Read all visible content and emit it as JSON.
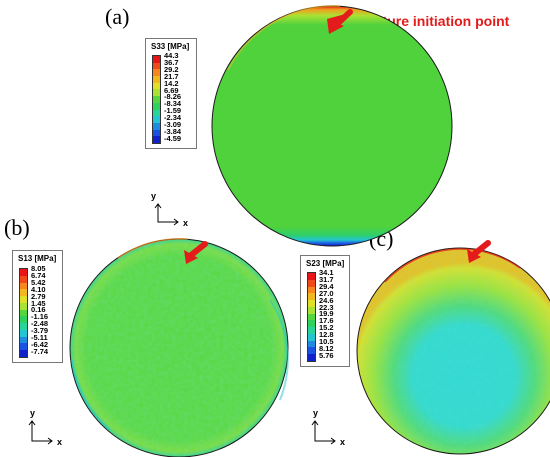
{
  "panels": {
    "a": {
      "label": "(a)",
      "legend_title": "S33 [MPa]",
      "values": [
        "44.3",
        "36.7",
        "29.2",
        "21.7",
        "14.2",
        "6.69",
        "-8.26",
        "-8.34",
        "-1.59",
        "-2.34",
        "-3.09",
        "-3.84",
        "-4.59"
      ],
      "colors": [
        "#e8141a",
        "#f04a1b",
        "#f7861e",
        "#f2b71f",
        "#dfe128",
        "#a9e234",
        "#55d63f",
        "#2ed05e",
        "#29d39c",
        "#24c5d2",
        "#1e8be0",
        "#1a52e2",
        "#1022c9"
      ],
      "axis_y": "y",
      "axis_x": "x",
      "annotation": "Fracture initiation point"
    },
    "b": {
      "label": "(b)",
      "legend_title": "S13 [MPa]",
      "values": [
        "8.05",
        "6.74",
        "5.42",
        "4.10",
        "2.79",
        "1.45",
        "0.16",
        "-1.16",
        "-2.48",
        "-3.79",
        "-5.11",
        "-6.42",
        "-7.74"
      ],
      "colors": [
        "#e8141a",
        "#f04a1b",
        "#f7861e",
        "#f2b71f",
        "#dfe128",
        "#a9e234",
        "#55d63f",
        "#2ed05e",
        "#29d39c",
        "#24c5d2",
        "#1e8be0",
        "#1a52e2",
        "#1022c9"
      ],
      "axis_y": "y",
      "axis_x": "x"
    },
    "c": {
      "label": "(c)",
      "legend_title": "S23 [MPa]",
      "values": [
        "34.1",
        "31.7",
        "29.4",
        "27.0",
        "24.6",
        "22.3",
        "19.9",
        "17.6",
        "15.2",
        "12.8",
        "10.5",
        "8.12",
        "5.76"
      ],
      "colors": [
        "#e8141a",
        "#f04a1b",
        "#f7861e",
        "#f2b71f",
        "#dfe128",
        "#a9e234",
        "#55d63f",
        "#2ed05e",
        "#29d39c",
        "#24c5d2",
        "#1e8be0",
        "#1a52e2",
        "#1022c9"
      ],
      "axis_y": "y",
      "axis_x": "x"
    }
  }
}
